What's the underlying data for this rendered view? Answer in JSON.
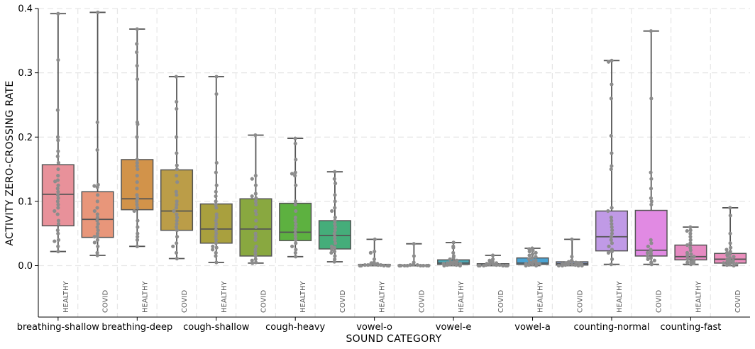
{
  "chart_data": {
    "type": "box",
    "xlabel": "SOUND CATEGORY",
    "ylabel": "ACTIVITY ZERO-CROSSING RATE",
    "ylim": [
      -0.08,
      0.4
    ],
    "yticks": [
      0.0,
      0.1,
      0.2,
      0.3,
      0.4
    ],
    "ytick_labels": [
      "0.0",
      "0.1",
      "0.2",
      "0.3",
      "0.4"
    ],
    "grid": true,
    "categories": [
      "breathing-shallow",
      "breathing-deep",
      "cough-shallow",
      "cough-heavy",
      "vowel-o",
      "vowel-e",
      "vowel-a",
      "counting-normal",
      "counting-fast"
    ],
    "groups": [
      "HEALTHY",
      "COVID"
    ],
    "boxes": [
      {
        "category": "breathing-shallow",
        "group": "HEALTHY",
        "color": "#e8919a",
        "whislo": 0.022,
        "q1": 0.062,
        "med": 0.111,
        "q3": 0.157,
        "whishi": 0.392,
        "points": [
          0.392,
          0.32,
          0.242,
          0.2,
          0.195,
          0.178,
          0.17,
          0.16,
          0.15,
          0.14,
          0.133,
          0.131,
          0.125,
          0.12,
          0.115,
          0.11,
          0.105,
          0.1,
          0.095,
          0.09,
          0.085,
          0.08,
          0.07,
          0.065,
          0.055,
          0.05,
          0.04,
          0.038,
          0.03,
          0.022
        ]
      },
      {
        "category": "breathing-shallow",
        "group": "COVID",
        "color": "#e8967a",
        "whislo": 0.016,
        "q1": 0.044,
        "med": 0.072,
        "q3": 0.115,
        "whishi": 0.394,
        "points": [
          0.394,
          0.223,
          0.18,
          0.126,
          0.124,
          0.122,
          0.11,
          0.1,
          0.09,
          0.085,
          0.08,
          0.075,
          0.07,
          0.065,
          0.06,
          0.055,
          0.05,
          0.046,
          0.045,
          0.04,
          0.036,
          0.03,
          0.02,
          0.016
        ]
      },
      {
        "category": "breathing-deep",
        "group": "HEALTHY",
        "color": "#d2934a",
        "whislo": 0.03,
        "q1": 0.087,
        "med": 0.104,
        "q3": 0.165,
        "whishi": 0.368,
        "points": [
          0.368,
          0.345,
          0.332,
          0.311,
          0.29,
          0.223,
          0.22,
          0.2,
          0.165,
          0.16,
          0.155,
          0.15,
          0.14,
          0.13,
          0.12,
          0.11,
          0.105,
          0.1,
          0.095,
          0.09,
          0.085,
          0.07,
          0.06,
          0.05,
          0.045,
          0.04,
          0.03
        ]
      },
      {
        "category": "breathing-deep",
        "group": "COVID",
        "color": "#bb9d48",
        "whislo": 0.011,
        "q1": 0.055,
        "med": 0.085,
        "q3": 0.149,
        "whishi": 0.294,
        "points": [
          0.294,
          0.255,
          0.244,
          0.2,
          0.175,
          0.156,
          0.15,
          0.14,
          0.13,
          0.115,
          0.11,
          0.1,
          0.095,
          0.09,
          0.085,
          0.08,
          0.075,
          0.07,
          0.065,
          0.06,
          0.055,
          0.045,
          0.035,
          0.03,
          0.02,
          0.011
        ]
      },
      {
        "category": "cough-shallow",
        "group": "HEALTHY",
        "color": "#a9a03e",
        "whislo": 0.005,
        "q1": 0.035,
        "med": 0.057,
        "q3": 0.096,
        "whishi": 0.294,
        "points": [
          0.294,
          0.267,
          0.16,
          0.145,
          0.125,
          0.115,
          0.108,
          0.1,
          0.095,
          0.09,
          0.08,
          0.075,
          0.07,
          0.065,
          0.06,
          0.055,
          0.05,
          0.045,
          0.04,
          0.035,
          0.03,
          0.028,
          0.025,
          0.02,
          0.015,
          0.005
        ]
      },
      {
        "category": "cough-shallow",
        "group": "COVID",
        "color": "#89a840",
        "whislo": 0.004,
        "q1": 0.015,
        "med": 0.057,
        "q3": 0.104,
        "whishi": 0.203,
        "points": [
          0.203,
          0.14,
          0.135,
          0.125,
          0.112,
          0.108,
          0.105,
          0.1,
          0.095,
          0.085,
          0.08,
          0.07,
          0.06,
          0.05,
          0.045,
          0.04,
          0.03,
          0.025,
          0.02,
          0.015,
          0.01,
          0.008,
          0.005,
          0.004
        ]
      },
      {
        "category": "cough-heavy",
        "group": "HEALTHY",
        "color": "#5db140",
        "whislo": 0.014,
        "q1": 0.039,
        "med": 0.052,
        "q3": 0.097,
        "whishi": 0.198,
        "points": [
          0.198,
          0.19,
          0.165,
          0.145,
          0.143,
          0.14,
          0.125,
          0.1,
          0.095,
          0.085,
          0.075,
          0.07,
          0.065,
          0.06,
          0.055,
          0.05,
          0.045,
          0.04,
          0.035,
          0.03,
          0.025,
          0.02,
          0.014
        ]
      },
      {
        "category": "cough-heavy",
        "group": "COVID",
        "color": "#45ad7a",
        "whislo": 0.006,
        "q1": 0.026,
        "med": 0.047,
        "q3": 0.07,
        "whishi": 0.146,
        "points": [
          0.146,
          0.135,
          0.128,
          0.11,
          0.1,
          0.09,
          0.085,
          0.075,
          0.07,
          0.065,
          0.06,
          0.055,
          0.05,
          0.045,
          0.04,
          0.035,
          0.03,
          0.028,
          0.025,
          0.022,
          0.02,
          0.015,
          0.01,
          0.006
        ]
      },
      {
        "category": "vowel-o",
        "group": "HEALTHY",
        "color": "#48ab96",
        "whislo": 0.0,
        "q1": 0.0,
        "med": 0.001,
        "q3": 0.002,
        "whishi": 0.041,
        "points": [
          0.041,
          0.022,
          0.02,
          0.01,
          0.005,
          0.004,
          0.003,
          0.002,
          0.002,
          0.001,
          0.001,
          0.001,
          0.001,
          0.0,
          0.0,
          0.0,
          0.0,
          0.0,
          0.0,
          0.0,
          0.0,
          0.0
        ]
      },
      {
        "category": "vowel-o",
        "group": "COVID",
        "color": "#4aa9a4",
        "whislo": 0.0,
        "q1": 0.0,
        "med": 0.0,
        "q3": 0.001,
        "whishi": 0.034,
        "points": [
          0.034,
          0.015,
          0.005,
          0.002,
          0.001,
          0.001,
          0.0,
          0.0,
          0.0,
          0.0,
          0.0,
          0.0,
          0.0,
          0.0,
          0.0,
          0.0,
          0.0,
          0.0
        ]
      },
      {
        "category": "vowel-e",
        "group": "HEALTHY",
        "color": "#4ba7b4",
        "whislo": 0.0,
        "q1": 0.002,
        "med": 0.004,
        "q3": 0.009,
        "whishi": 0.036,
        "points": [
          0.036,
          0.03,
          0.028,
          0.02,
          0.015,
          0.012,
          0.01,
          0.008,
          0.006,
          0.005,
          0.004,
          0.004,
          0.003,
          0.003,
          0.002,
          0.002,
          0.001,
          0.001,
          0.0,
          0.0
        ]
      },
      {
        "category": "vowel-e",
        "group": "COVID",
        "color": "#4aa6c4",
        "whislo": 0.0,
        "q1": 0.0,
        "med": 0.001,
        "q3": 0.003,
        "whishi": 0.016,
        "points": [
          0.016,
          0.01,
          0.008,
          0.006,
          0.005,
          0.004,
          0.003,
          0.002,
          0.002,
          0.001,
          0.001,
          0.001,
          0.0,
          0.0,
          0.0,
          0.0,
          0.0,
          0.0
        ]
      },
      {
        "category": "vowel-a",
        "group": "HEALTHY",
        "color": "#4aa4d4",
        "whislo": 0.0,
        "q1": 0.002,
        "med": 0.004,
        "q3": 0.012,
        "whishi": 0.027,
        "points": [
          0.027,
          0.026,
          0.024,
          0.022,
          0.02,
          0.018,
          0.016,
          0.014,
          0.012,
          0.01,
          0.008,
          0.006,
          0.005,
          0.004,
          0.003,
          0.003,
          0.002,
          0.001,
          0.0,
          0.0
        ]
      },
      {
        "category": "vowel-a",
        "group": "COVID",
        "color": "#8fa8de",
        "whislo": 0.0,
        "q1": 0.001,
        "med": 0.003,
        "q3": 0.006,
        "whishi": 0.041,
        "points": [
          0.041,
          0.014,
          0.008,
          0.007,
          0.006,
          0.005,
          0.004,
          0.004,
          0.003,
          0.003,
          0.002,
          0.002,
          0.001,
          0.001,
          0.0,
          0.0,
          0.0,
          0.0
        ]
      },
      {
        "category": "counting-normal",
        "group": "HEALTHY",
        "color": "#c09ae6",
        "whislo": 0.002,
        "q1": 0.023,
        "med": 0.045,
        "q3": 0.085,
        "whishi": 0.319,
        "points": [
          0.319,
          0.317,
          0.282,
          0.26,
          0.202,
          0.175,
          0.155,
          0.15,
          0.09,
          0.085,
          0.075,
          0.07,
          0.065,
          0.06,
          0.055,
          0.05,
          0.045,
          0.04,
          0.035,
          0.03,
          0.025,
          0.022,
          0.02,
          0.01,
          0.002
        ]
      },
      {
        "category": "counting-normal",
        "group": "COVID",
        "color": "#e18ae3",
        "whislo": 0.002,
        "q1": 0.015,
        "med": 0.024,
        "q3": 0.086,
        "whishi": 0.365,
        "points": [
          0.365,
          0.26,
          0.145,
          0.135,
          0.12,
          0.105,
          0.1,
          0.095,
          0.04,
          0.035,
          0.03,
          0.025,
          0.022,
          0.02,
          0.018,
          0.015,
          0.012,
          0.01,
          0.008,
          0.005,
          0.002
        ]
      },
      {
        "category": "counting-fast",
        "group": "HEALTHY",
        "color": "#e68ac2",
        "whislo": 0.002,
        "q1": 0.009,
        "med": 0.014,
        "q3": 0.032,
        "whishi": 0.06,
        "points": [
          0.06,
          0.055,
          0.054,
          0.05,
          0.045,
          0.04,
          0.035,
          0.032,
          0.028,
          0.024,
          0.02,
          0.018,
          0.016,
          0.014,
          0.012,
          0.01,
          0.008,
          0.006,
          0.005,
          0.004,
          0.002
        ]
      },
      {
        "category": "counting-fast",
        "group": "COVID",
        "color": "#ec8fbe",
        "whislo": 0.0,
        "q1": 0.004,
        "med": 0.01,
        "q3": 0.019,
        "whishi": 0.09,
        "points": [
          0.09,
          0.078,
          0.05,
          0.035,
          0.028,
          0.025,
          0.022,
          0.02,
          0.018,
          0.016,
          0.014,
          0.012,
          0.01,
          0.008,
          0.007,
          0.006,
          0.005,
          0.004,
          0.003,
          0.002,
          0.001,
          0.0
        ]
      }
    ],
    "point_color": "#8c8c8c",
    "line_color": "#555555",
    "grid_color": "#e6e6e6"
  }
}
